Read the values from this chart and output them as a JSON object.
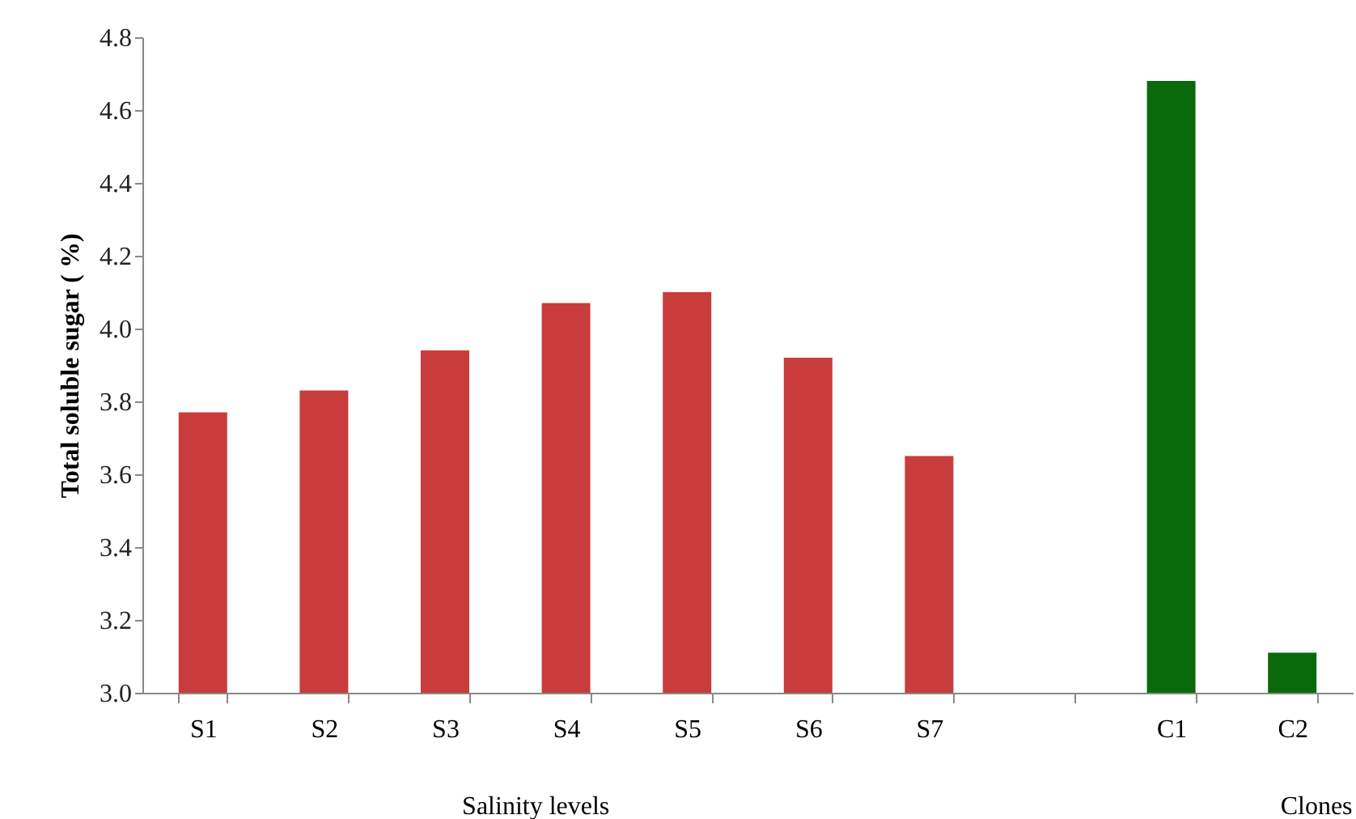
{
  "chart_data": {
    "type": "bar",
    "ylabel": "Total soluble sugar ( %)",
    "categories": [
      "S1",
      "S2",
      "S3",
      "S4",
      "S5",
      "S6",
      "S7",
      null,
      "C1",
      "C2"
    ],
    "values": [
      3.77,
      3.83,
      3.94,
      4.07,
      4.1,
      3.92,
      3.65,
      null,
      4.68,
      3.11
    ],
    "colors": [
      "#c83c3c",
      "#c83c3c",
      "#c83c3c",
      "#c83c3c",
      "#c83c3c",
      "#c83c3c",
      "#c83c3c",
      "#c83c3c",
      "#0a6a0a",
      "#0a6a0a"
    ],
    "ylim": [
      3.0,
      4.8
    ],
    "yticks": [
      {
        "value": 3,
        "label": "3.0"
      },
      3.2,
      3.4,
      3.6,
      3.8,
      {
        "value": 4,
        "label": "4.0"
      },
      4.2,
      4.4,
      4.6,
      4.8
    ],
    "grid": false,
    "annotations": [
      "Salinity levels",
      "Clones"
    ]
  }
}
